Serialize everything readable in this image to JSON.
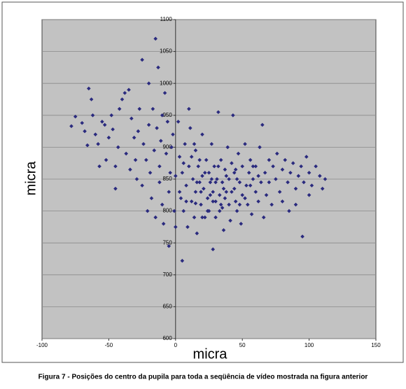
{
  "chart_data": {
    "type": "scatter",
    "xlabel": "micra",
    "ylabel": "micra",
    "caption": "Figura 7 - Posições do centro da pupila para toda a seqüência de vídeo mostrada na figura anterior",
    "color": "#2a2a7e",
    "grid": true,
    "xlim": [
      -100,
      150
    ],
    "ylim": [
      600,
      1100
    ],
    "xticks": [
      -100,
      -50,
      0,
      50,
      100,
      150
    ],
    "yticks": [
      600,
      650,
      700,
      750,
      800,
      850,
      900,
      950,
      1000,
      1050,
      1100
    ],
    "x": [
      -78,
      -75,
      -70,
      -68,
      -66,
      -65,
      -63,
      -62,
      -60,
      -58,
      -57,
      -55,
      -53,
      -52,
      -50,
      -48,
      -47,
      -45,
      -45,
      -43,
      -42,
      -40,
      -38,
      -37,
      -35,
      -34,
      -33,
      -31,
      -30,
      -29,
      -28,
      -27,
      -25,
      -25,
      -24,
      -22,
      -21,
      -20,
      -20,
      -19,
      -18,
      -17,
      -16,
      -15,
      -15,
      -14,
      -13,
      -12,
      -12,
      -11,
      -10,
      -10,
      -9,
      -8,
      -7,
      -6,
      -5,
      -5,
      -4,
      -3,
      -2,
      -1,
      0,
      0,
      2,
      3,
      4,
      5,
      5,
      6,
      7,
      8,
      9,
      10,
      11,
      12,
      13,
      14,
      15,
      15,
      16,
      17,
      18,
      19,
      20,
      20,
      21,
      22,
      23,
      24,
      25,
      25,
      26,
      27,
      28,
      28,
      29,
      30,
      30,
      31,
      32,
      33,
      34,
      35,
      35,
      36,
      37,
      38,
      39,
      40,
      40,
      41,
      42,
      43,
      44,
      45,
      45,
      46,
      47,
      48,
      49,
      50,
      50,
      52,
      53,
      54,
      55,
      56,
      57,
      58,
      60,
      60,
      62,
      63,
      64,
      65,
      66,
      67,
      68,
      70,
      70,
      72,
      73,
      75,
      76,
      78,
      80,
      80,
      82,
      84,
      85,
      86,
      88,
      90,
      90,
      92,
      94,
      95,
      96,
      98,
      100,
      100,
      102,
      105,
      108,
      110,
      112,
      18,
      22,
      26,
      30,
      34,
      38,
      12,
      8,
      16,
      24,
      32,
      36,
      14,
      20,
      28,
      42,
      46,
      52,
      56,
      10,
      6,
      3,
      15,
      19,
      27,
      33,
      37,
      44,
      48,
      58,
      62
    ],
    "values": [
      933,
      948,
      938,
      925,
      903,
      992,
      975,
      950,
      920,
      905,
      870,
      940,
      935,
      880,
      915,
      950,
      928,
      835,
      870,
      900,
      960,
      975,
      985,
      890,
      990,
      865,
      945,
      915,
      880,
      850,
      925,
      960,
      1037,
      840,
      905,
      880,
      800,
      1000,
      935,
      860,
      820,
      960,
      895,
      1070,
      790,
      930,
      1025,
      845,
      870,
      910,
      950,
      810,
      780,
      985,
      890,
      940,
      745,
      830,
      860,
      900,
      920,
      800,
      855,
      775,
      940,
      885,
      820,
      722,
      860,
      800,
      905,
      840,
      775,
      870,
      930,
      815,
      850,
      790,
      895,
      830,
      765,
      870,
      845,
      810,
      920,
      855,
      835,
      790,
      880,
      820,
      860,
      800,
      845,
      905,
      740,
      830,
      870,
      815,
      790,
      850,
      955,
      825,
      880,
      805,
      845,
      770,
      865,
      830,
      900,
      810,
      850,
      785,
      875,
      950,
      835,
      815,
      865,
      800,
      890,
      845,
      780,
      825,
      870,
      905,
      840,
      810,
      860,
      880,
      795,
      850,
      830,
      870,
      815,
      900,
      845,
      935,
      790,
      860,
      825,
      880,
      845,
      810,
      870,
      850,
      890,
      830,
      865,
      815,
      880,
      845,
      800,
      860,
      875,
      835,
      810,
      855,
      870,
      760,
      845,
      885,
      825,
      860,
      840,
      870,
      855,
      835,
      850,
      880,
      860,
      825,
      845,
      810,
      855,
      885,
      815,
      845,
      800,
      870,
      835,
      905,
      790,
      815,
      830,
      850,
      820,
      840,
      960,
      875,
      830,
      812,
      830,
      850,
      800,
      820,
      860,
      810,
      870,
      855
    ]
  }
}
